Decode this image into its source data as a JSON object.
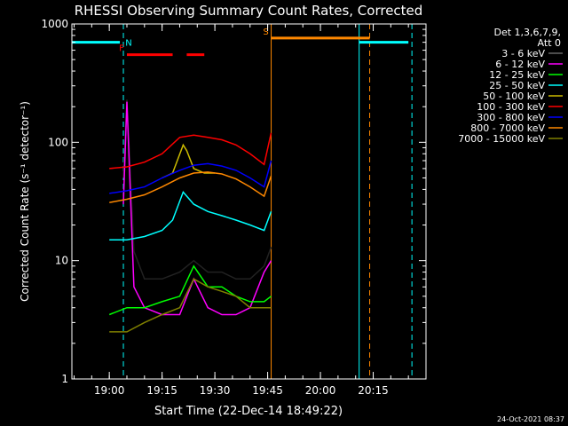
{
  "chart_data": {
    "type": "line",
    "title": "RHESSI Observing Summary Count Rates, Corrected",
    "xlabel": "Start Time (22-Dec-14 18:49:22)",
    "ylabel": "Corrected Count Rate (s⁻¹ detector⁻¹)",
    "y_scale": "log",
    "ylim": [
      1,
      1000
    ],
    "xlim": [
      "18:49:22",
      "20:30:00"
    ],
    "x_ticks": [
      "19:00",
      "19:15",
      "19:30",
      "19:45",
      "20:00",
      "20:15"
    ],
    "y_ticks": [
      "1",
      "10",
      "100",
      "1000"
    ],
    "grid": false,
    "legend_header": [
      "Det 1,3,6,7,9,",
      "Att 0"
    ],
    "legend_position": "right",
    "footer_date": "24-Oct-2021 08:37",
    "series": [
      {
        "name": "3 - 6 keV",
        "color": "#000000",
        "x": [
          "19:04",
          "19:05",
          "19:07",
          "19:10",
          "19:15",
          "19:20",
          "19:24",
          "19:28",
          "19:32",
          "19:36",
          "19:40",
          "19:44",
          "19:46"
        ],
        "values": [
          50,
          230,
          12,
          7,
          7,
          8,
          10,
          8,
          8,
          7,
          7,
          9,
          13
        ]
      },
      {
        "name": "6 - 12 keV",
        "color": "#ff00ff",
        "x": [
          "19:04",
          "19:05",
          "19:07",
          "19:10",
          "19:15",
          "19:20",
          "19:24",
          "19:28",
          "19:32",
          "19:36",
          "19:40",
          "19:44",
          "19:46"
        ],
        "values": [
          30,
          220,
          6,
          4,
          3.5,
          3.5,
          7,
          4,
          3.5,
          3.5,
          4,
          8,
          10
        ]
      },
      {
        "name": "12 - 25 keV",
        "color": "#00ff00",
        "x": [
          "19:00",
          "19:05",
          "19:10",
          "19:15",
          "19:20",
          "19:24",
          "19:28",
          "19:32",
          "19:36",
          "19:40",
          "19:44",
          "19:46"
        ],
        "values": [
          3.5,
          4,
          4,
          4.5,
          5,
          9,
          6,
          6,
          5,
          4.5,
          4.5,
          5
        ]
      },
      {
        "name": "25 - 50 keV",
        "color": "#00ffff",
        "x": [
          "19:00",
          "19:05",
          "19:10",
          "19:15",
          "19:18",
          "19:21",
          "19:24",
          "19:28",
          "19:32",
          "19:36",
          "19:40",
          "19:44",
          "19:46"
        ],
        "values": [
          15,
          15,
          16,
          18,
          22,
          38,
          30,
          26,
          24,
          22,
          20,
          18,
          26
        ]
      },
      {
        "name": "50 - 100 keV",
        "color": "#ccbb00",
        "x": [
          "19:15",
          "19:18",
          "19:21",
          "19:22",
          "19:24",
          "19:27",
          "19:30"
        ],
        "values": [
          50,
          55,
          95,
          85,
          60,
          55,
          55
        ]
      },
      {
        "name": "100 - 300 keV",
        "color": "#ff0000",
        "x": [
          "19:00",
          "19:05",
          "19:10",
          "19:15",
          "19:20",
          "19:24",
          "19:28",
          "19:32",
          "19:36",
          "19:40",
          "19:44",
          "19:46"
        ],
        "values": [
          60,
          62,
          68,
          80,
          110,
          115,
          110,
          105,
          95,
          80,
          65,
          120
        ]
      },
      {
        "name": "300 - 800 keV",
        "color": "#0000ff",
        "x": [
          "19:00",
          "19:05",
          "19:10",
          "19:15",
          "19:20",
          "19:24",
          "19:28",
          "19:32",
          "19:36",
          "19:40",
          "19:44",
          "19:46"
        ],
        "values": [
          37,
          39,
          42,
          50,
          58,
          64,
          66,
          63,
          58,
          50,
          42,
          70
        ]
      },
      {
        "name": "800 - 7000 keV",
        "color": "#ff8800",
        "x": [
          "19:00",
          "19:05",
          "19:10",
          "19:15",
          "19:20",
          "19:24",
          "19:28",
          "19:32",
          "19:36",
          "19:40",
          "19:44",
          "19:46"
        ],
        "values": [
          31,
          33,
          36,
          42,
          50,
          55,
          56,
          54,
          49,
          42,
          35,
          52
        ]
      },
      {
        "name": "7000 - 15000 keV",
        "color": "#808000",
        "x": [
          "19:00",
          "19:05",
          "19:10",
          "19:15",
          "19:20",
          "19:24",
          "19:28",
          "19:32",
          "19:36",
          "19:40",
          "19:44",
          "19:46"
        ],
        "values": [
          2.5,
          2.5,
          3,
          3.5,
          4,
          7,
          6,
          5.5,
          5,
          4,
          4,
          4
        ]
      }
    ],
    "annotations": [
      {
        "label": "N",
        "color": "#00ffff",
        "segments": [
          [
            "18:49:22",
            "19:03"
          ],
          [
            "20:11",
            "20:25"
          ]
        ],
        "level": 700
      },
      {
        "label": "F",
        "color": "#ff0000",
        "segments": [
          [
            "19:05",
            "19:18"
          ],
          [
            "19:22",
            "19:27"
          ]
        ],
        "level": 550
      },
      {
        "label": "S",
        "color": "#ff8800",
        "segments": [
          [
            "19:46",
            "20:14"
          ]
        ],
        "level": 760
      }
    ],
    "vertical_markers": [
      {
        "time": "18:49:22",
        "color": "#00ffff",
        "style": "solid"
      },
      {
        "time": "19:04",
        "color": "#00ffff",
        "style": "dashed"
      },
      {
        "time": "19:46",
        "color": "#ff8800",
        "style": "solid"
      },
      {
        "time": "20:11",
        "color": "#00ffff",
        "style": "solid"
      },
      {
        "time": "20:14",
        "color": "#ff8800",
        "style": "dashed"
      },
      {
        "time": "20:26",
        "color": "#00ffff",
        "style": "dashed"
      }
    ]
  }
}
